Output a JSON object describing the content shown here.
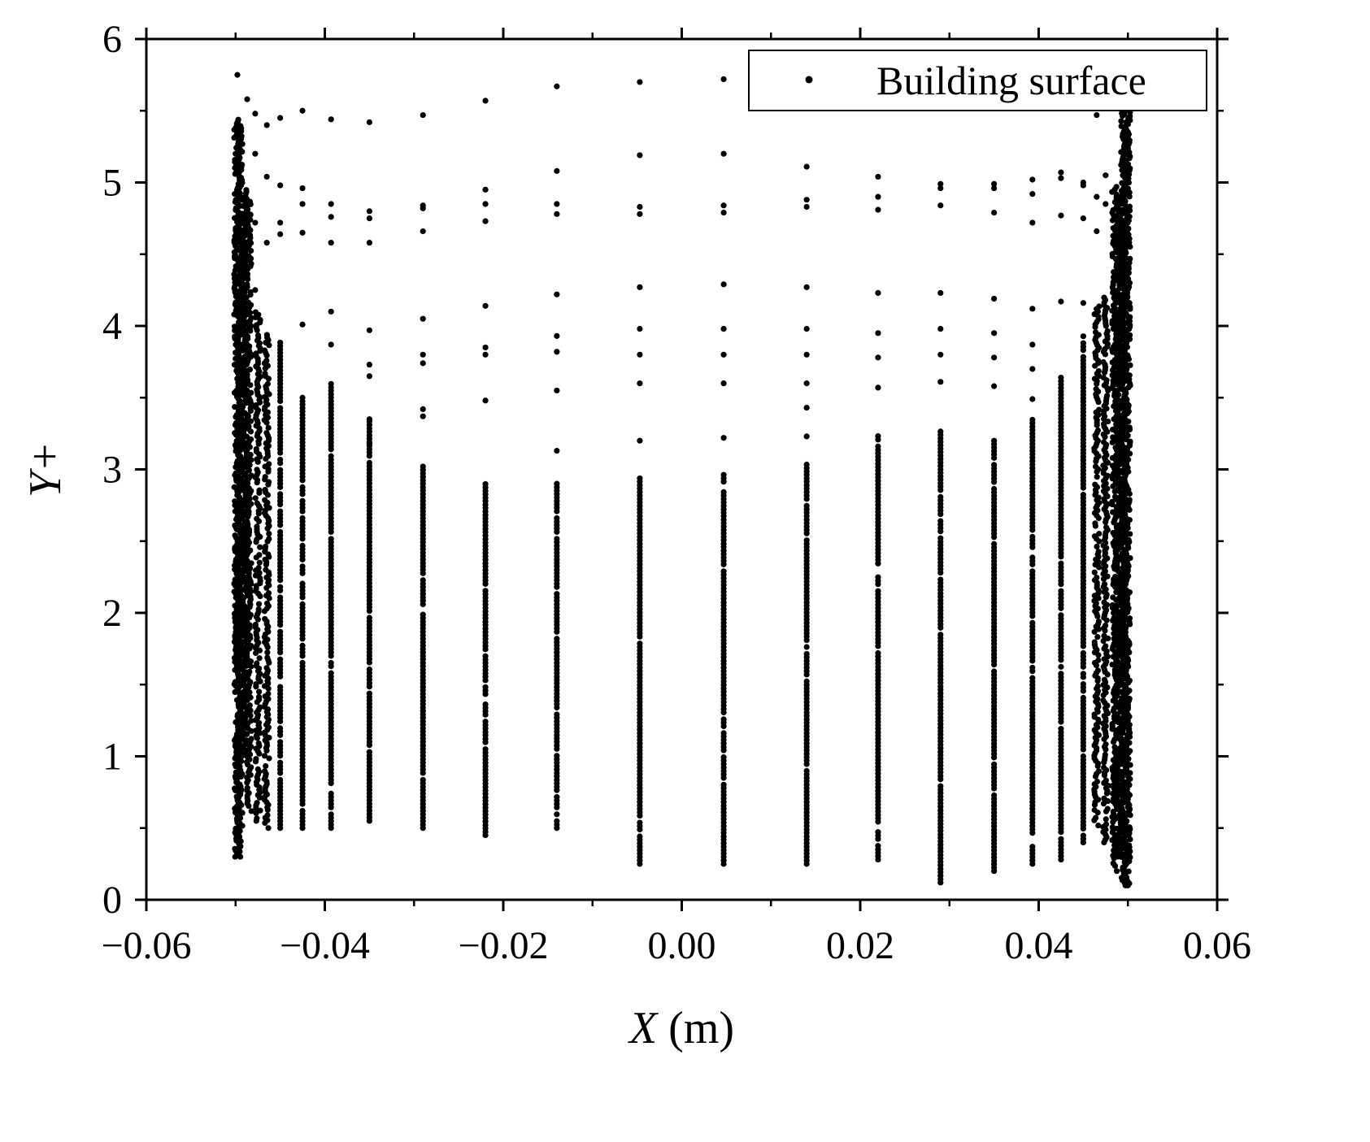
{
  "chart_data": {
    "type": "scatter",
    "xlabel": {
      "var": "X",
      "unit": " (m)"
    },
    "ylabel": "Y+",
    "xlim": [
      -0.06,
      0.06
    ],
    "ylim": [
      0,
      6
    ],
    "x_ticks": [
      -0.06,
      -0.04,
      -0.02,
      0.0,
      0.02,
      0.04,
      0.06
    ],
    "x_tick_labels": [
      "−0.06",
      "−0.04",
      "−0.02",
      "0.00",
      "0.02",
      "0.04",
      "0.06"
    ],
    "y_ticks": [
      0,
      1,
      2,
      3,
      4,
      5,
      6
    ],
    "y_tick_labels": [
      "0",
      "1",
      "2",
      "3",
      "4",
      "5",
      "6"
    ],
    "grid": false,
    "legend": {
      "position": "top-right",
      "entries": [
        "Building surface"
      ]
    },
    "series": [
      {
        "name": "Building surface",
        "color": "#000000",
        "x_columns": [
          -0.0495,
          -0.0485,
          -0.0475,
          -0.0465,
          -0.045,
          -0.0425,
          -0.0393,
          -0.035,
          -0.029,
          -0.022,
          -0.014,
          -0.0047,
          0.0047,
          0.014,
          0.022,
          0.029,
          0.035,
          0.0393,
          0.0425,
          0.045,
          0.0465,
          0.0475,
          0.0485,
          0.0495
        ],
        "y_ranges": [
          [
            0.3,
            5.4
          ],
          [
            0.6,
            4.9
          ],
          [
            0.55,
            4.1
          ],
          [
            0.5,
            3.95
          ],
          [
            0.5,
            3.9
          ],
          [
            0.5,
            3.5
          ],
          [
            0.5,
            3.6
          ],
          [
            0.55,
            3.35
          ],
          [
            0.5,
            3.02
          ],
          [
            0.45,
            2.9
          ],
          [
            0.5,
            2.92
          ],
          [
            0.25,
            2.95
          ],
          [
            0.25,
            2.97
          ],
          [
            0.25,
            3.05
          ],
          [
            0.28,
            3.25
          ],
          [
            0.12,
            3.3
          ],
          [
            0.2,
            3.2
          ],
          [
            0.25,
            3.35
          ],
          [
            0.28,
            3.65
          ],
          [
            0.4,
            3.95
          ],
          [
            0.5,
            4.15
          ],
          [
            0.4,
            4.2
          ],
          [
            0.2,
            5.0
          ],
          [
            0.1,
            5.5
          ]
        ],
        "upper_points": [
          {
            "x": -0.0498,
            "y": 5.75
          },
          {
            "x": -0.0487,
            "y": 5.58
          },
          {
            "x": -0.0478,
            "y": 5.48
          },
          {
            "x": -0.0465,
            "y": 5.4
          },
          {
            "x": -0.045,
            "y": 5.45
          },
          {
            "x": -0.0425,
            "y": 5.5
          },
          {
            "x": -0.0393,
            "y": 5.44
          },
          {
            "x": -0.035,
            "y": 5.42
          },
          {
            "x": -0.029,
            "y": 5.47
          },
          {
            "x": -0.022,
            "y": 5.57
          },
          {
            "x": -0.014,
            "y": 5.67
          },
          {
            "x": -0.0047,
            "y": 5.7
          },
          {
            "x": 0.0047,
            "y": 5.72
          },
          {
            "x": -0.0478,
            "y": 5.2
          },
          {
            "x": -0.0465,
            "y": 5.04
          },
          {
            "x": -0.045,
            "y": 4.98
          },
          {
            "x": -0.0425,
            "y": 4.96
          },
          {
            "x": -0.0425,
            "y": 4.85
          },
          {
            "x": -0.0393,
            "y": 4.85
          },
          {
            "x": -0.0393,
            "y": 4.76
          },
          {
            "x": -0.035,
            "y": 4.8
          },
          {
            "x": -0.035,
            "y": 4.75
          },
          {
            "x": -0.029,
            "y": 4.84
          },
          {
            "x": -0.029,
            "y": 4.82
          },
          {
            "x": -0.022,
            "y": 4.95
          },
          {
            "x": -0.022,
            "y": 4.85
          },
          {
            "x": -0.022,
            "y": 4.73
          },
          {
            "x": -0.014,
            "y": 5.08
          },
          {
            "x": -0.014,
            "y": 4.85
          },
          {
            "x": -0.014,
            "y": 4.78
          },
          {
            "x": -0.0047,
            "y": 5.19
          },
          {
            "x": -0.0047,
            "y": 4.83
          },
          {
            "x": -0.0047,
            "y": 4.78
          },
          {
            "x": 0.0047,
            "y": 5.2
          },
          {
            "x": 0.0047,
            "y": 4.84
          },
          {
            "x": 0.0047,
            "y": 4.79
          },
          {
            "x": 0.014,
            "y": 5.11
          },
          {
            "x": 0.014,
            "y": 4.88
          },
          {
            "x": 0.014,
            "y": 4.83
          },
          {
            "x": 0.022,
            "y": 5.04
          },
          {
            "x": 0.022,
            "y": 4.9
          },
          {
            "x": 0.022,
            "y": 4.81
          },
          {
            "x": 0.029,
            "y": 4.99
          },
          {
            "x": 0.029,
            "y": 4.96
          },
          {
            "x": 0.029,
            "y": 4.84
          },
          {
            "x": 0.035,
            "y": 4.99
          },
          {
            "x": 0.035,
            "y": 4.96
          },
          {
            "x": 0.035,
            "y": 4.79
          },
          {
            "x": 0.0393,
            "y": 5.02
          },
          {
            "x": 0.0393,
            "y": 4.92
          },
          {
            "x": 0.0393,
            "y": 4.72
          },
          {
            "x": 0.0425,
            "y": 5.07
          },
          {
            "x": 0.0425,
            "y": 5.03
          },
          {
            "x": 0.0425,
            "y": 4.77
          },
          {
            "x": 0.045,
            "y": 5.0
          },
          {
            "x": 0.045,
            "y": 4.98
          },
          {
            "x": 0.045,
            "y": 4.75
          },
          {
            "x": 0.0465,
            "y": 4.9
          },
          {
            "x": 0.0465,
            "y": 4.66
          },
          {
            "x": 0.0475,
            "y": 5.05
          },
          {
            "x": 0.0475,
            "y": 4.85
          },
          {
            "x": 0.0465,
            "y": 5.47
          },
          {
            "x": -0.0478,
            "y": 4.72
          },
          {
            "x": -0.0465,
            "y": 4.58
          },
          {
            "x": -0.045,
            "y": 4.64
          },
          {
            "x": -0.045,
            "y": 4.72
          },
          {
            "x": -0.0425,
            "y": 4.65
          },
          {
            "x": -0.0393,
            "y": 4.58
          },
          {
            "x": -0.035,
            "y": 4.58
          },
          {
            "x": -0.029,
            "y": 4.66
          },
          {
            "x": -0.0478,
            "y": 4.25
          },
          {
            "x": -0.0425,
            "y": 4.01
          },
          {
            "x": -0.0393,
            "y": 4.1
          },
          {
            "x": -0.035,
            "y": 3.97
          },
          {
            "x": -0.029,
            "y": 4.05
          },
          {
            "x": -0.022,
            "y": 4.14
          },
          {
            "x": -0.014,
            "y": 4.22
          },
          {
            "x": -0.0047,
            "y": 4.27
          },
          {
            "x": 0.0047,
            "y": 4.29
          },
          {
            "x": 0.014,
            "y": 4.27
          },
          {
            "x": 0.022,
            "y": 4.23
          },
          {
            "x": 0.029,
            "y": 4.23
          },
          {
            "x": 0.035,
            "y": 4.19
          },
          {
            "x": 0.0393,
            "y": 4.12
          },
          {
            "x": 0.0425,
            "y": 4.17
          },
          {
            "x": 0.045,
            "y": 4.16
          },
          {
            "x": -0.022,
            "y": 3.85
          },
          {
            "x": -0.022,
            "y": 3.8
          },
          {
            "x": -0.022,
            "y": 3.48
          },
          {
            "x": -0.014,
            "y": 3.93
          },
          {
            "x": -0.014,
            "y": 3.82
          },
          {
            "x": -0.014,
            "y": 3.55
          },
          {
            "x": -0.014,
            "y": 3.13
          },
          {
            "x": -0.0047,
            "y": 3.98
          },
          {
            "x": -0.0047,
            "y": 3.8
          },
          {
            "x": -0.0047,
            "y": 3.6
          },
          {
            "x": -0.0047,
            "y": 3.2
          },
          {
            "x": 0.0047,
            "y": 3.98
          },
          {
            "x": 0.0047,
            "y": 3.8
          },
          {
            "x": 0.0047,
            "y": 3.6
          },
          {
            "x": 0.0047,
            "y": 3.22
          },
          {
            "x": 0.014,
            "y": 3.98
          },
          {
            "x": 0.014,
            "y": 3.8
          },
          {
            "x": 0.014,
            "y": 3.6
          },
          {
            "x": 0.014,
            "y": 3.43
          },
          {
            "x": 0.014,
            "y": 3.23
          },
          {
            "x": 0.022,
            "y": 3.95
          },
          {
            "x": 0.022,
            "y": 3.78
          },
          {
            "x": 0.022,
            "y": 3.57
          },
          {
            "x": 0.029,
            "y": 3.98
          },
          {
            "x": 0.029,
            "y": 3.8
          },
          {
            "x": 0.029,
            "y": 3.61
          },
          {
            "x": 0.035,
            "y": 3.95
          },
          {
            "x": 0.035,
            "y": 3.78
          },
          {
            "x": 0.035,
            "y": 3.58
          },
          {
            "x": 0.0393,
            "y": 3.87
          },
          {
            "x": 0.0393,
            "y": 3.7
          },
          {
            "x": 0.0393,
            "y": 3.49
          },
          {
            "x": -0.029,
            "y": 3.8
          },
          {
            "x": -0.029,
            "y": 3.74
          },
          {
            "x": -0.029,
            "y": 3.42
          },
          {
            "x": -0.029,
            "y": 3.37
          },
          {
            "x": -0.035,
            "y": 3.73
          },
          {
            "x": -0.035,
            "y": 3.65
          },
          {
            "x": -0.035,
            "y": 3.35
          },
          {
            "x": -0.035,
            "y": 3.18
          },
          {
            "x": -0.0393,
            "y": 3.87
          }
        ]
      }
    ]
  }
}
